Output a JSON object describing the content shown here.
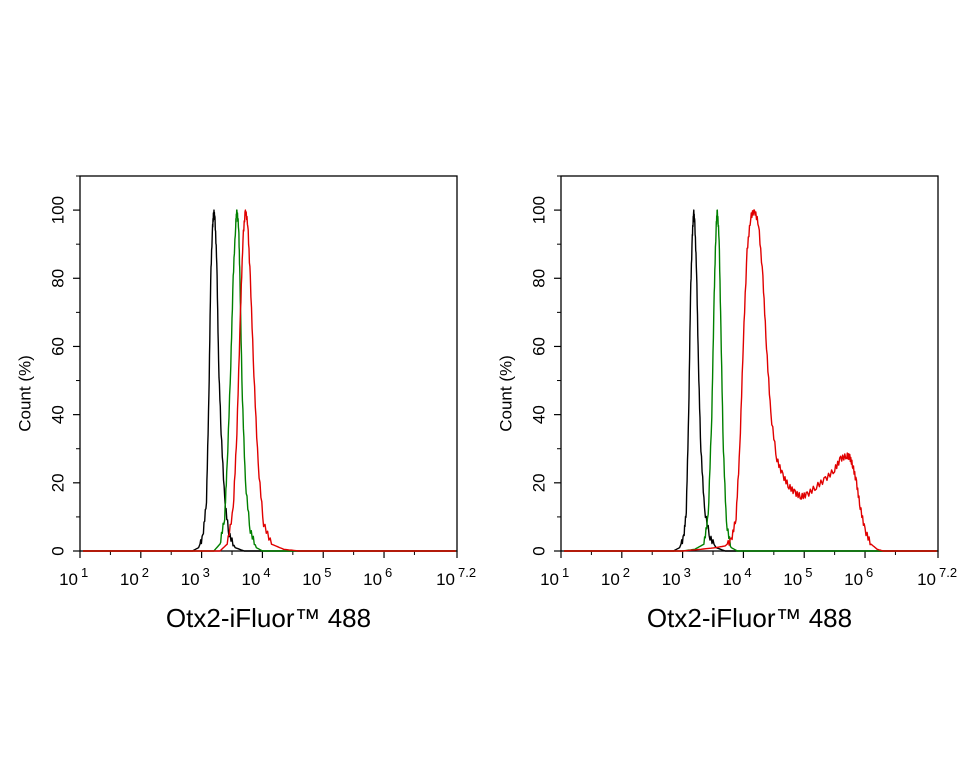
{
  "chart_data": [
    {
      "type": "line",
      "title": "",
      "xlabel": "Otx2-iFluor™ 488",
      "ylabel": "Count (%)",
      "xscale": "log",
      "xlim": [
        1,
        7.2
      ],
      "ylim": [
        0,
        110
      ],
      "x_ticks": [
        {
          "base": "10",
          "exp": "1"
        },
        {
          "base": "10",
          "exp": "2"
        },
        {
          "base": "10",
          "exp": "3"
        },
        {
          "base": "10",
          "exp": "4"
        },
        {
          "base": "10",
          "exp": "5"
        },
        {
          "base": "10",
          "exp": "6"
        },
        {
          "base": "10",
          "exp": "7.2"
        }
      ],
      "y_ticks": [
        "0",
        "20",
        "40",
        "60",
        "80",
        "100"
      ],
      "grid": false,
      "series": [
        {
          "color": "#000000",
          "x_log10": [
            2.85,
            2.95,
            3.02,
            3.08,
            3.12,
            3.15,
            3.18,
            3.2,
            3.22,
            3.25,
            3.28,
            3.32,
            3.38,
            3.45,
            3.55,
            3.7
          ],
          "y": [
            0,
            1,
            4,
            15,
            45,
            80,
            95,
            100,
            97,
            85,
            55,
            35,
            15,
            5,
            1,
            0
          ]
        },
        {
          "color": "#008000",
          "x_log10": [
            3.2,
            3.3,
            3.38,
            3.42,
            3.48,
            3.52,
            3.56,
            3.58,
            3.61,
            3.63,
            3.67,
            3.72,
            3.8,
            3.9,
            4.0
          ],
          "y": [
            0,
            2,
            10,
            25,
            55,
            80,
            96,
            100,
            95,
            80,
            45,
            20,
            6,
            1,
            0
          ]
        },
        {
          "color": "#e00000",
          "x_log10": [
            3.3,
            3.42,
            3.52,
            3.58,
            3.64,
            3.68,
            3.72,
            3.76,
            3.8,
            3.86,
            3.93,
            4.02,
            4.15,
            4.35,
            4.6
          ],
          "y": [
            0,
            2,
            12,
            35,
            70,
            92,
            100,
            96,
            80,
            52,
            25,
            8,
            2,
            0.5,
            0
          ]
        }
      ]
    },
    {
      "type": "line",
      "title": "",
      "xlabel": "Otx2-iFluor™ 488",
      "ylabel": "Count (%)",
      "xscale": "log",
      "xlim": [
        1,
        7.2
      ],
      "ylim": [
        0,
        110
      ],
      "x_ticks": [
        {
          "base": "10",
          "exp": "1"
        },
        {
          "base": "10",
          "exp": "2"
        },
        {
          "base": "10",
          "exp": "3"
        },
        {
          "base": "10",
          "exp": "4"
        },
        {
          "base": "10",
          "exp": "5"
        },
        {
          "base": "10",
          "exp": "6"
        },
        {
          "base": "10",
          "exp": "7.2"
        }
      ],
      "y_ticks": [
        "0",
        "20",
        "40",
        "60",
        "80",
        "100"
      ],
      "grid": false,
      "series": [
        {
          "color": "#000000",
          "x_log10": [
            2.85,
            2.95,
            3.02,
            3.06,
            3.1,
            3.13,
            3.16,
            3.18,
            3.2,
            3.23,
            3.26,
            3.3,
            3.36,
            3.45,
            3.55,
            3.7
          ],
          "y": [
            0,
            1,
            4,
            12,
            40,
            75,
            92,
            100,
            96,
            82,
            55,
            30,
            12,
            4,
            1,
            0
          ]
        },
        {
          "color": "#008000",
          "x_log10": [
            3.0,
            3.2,
            3.35,
            3.42,
            3.48,
            3.52,
            3.55,
            3.57,
            3.6,
            3.63,
            3.67,
            3.72,
            3.8,
            3.9
          ],
          "y": [
            0,
            0.5,
            2,
            10,
            40,
            75,
            95,
            100,
            92,
            65,
            30,
            8,
            1,
            0
          ]
        },
        {
          "color": "#e00000",
          "x_log10": [
            3.0,
            3.3,
            3.55,
            3.7,
            3.8,
            3.88,
            3.94,
            4.0,
            4.06,
            4.12,
            4.18,
            4.25,
            4.32,
            4.38,
            4.45,
            4.55,
            4.65,
            4.75,
            4.85,
            4.95,
            5.05,
            5.2,
            5.35,
            5.5,
            5.6,
            5.7,
            5.75,
            5.8,
            5.86,
            5.92,
            6.0,
            6.1,
            6.2,
            6.3,
            6.45
          ],
          "y": [
            0,
            0.5,
            1,
            1.5,
            3,
            10,
            30,
            62,
            88,
            98,
            100,
            96,
            80,
            60,
            40,
            27,
            22,
            19,
            17,
            16,
            16.5,
            19,
            21,
            24,
            27,
            28,
            27.5,
            25,
            20,
            13,
            6,
            2,
            0.5,
            0,
            0
          ]
        }
      ]
    }
  ]
}
